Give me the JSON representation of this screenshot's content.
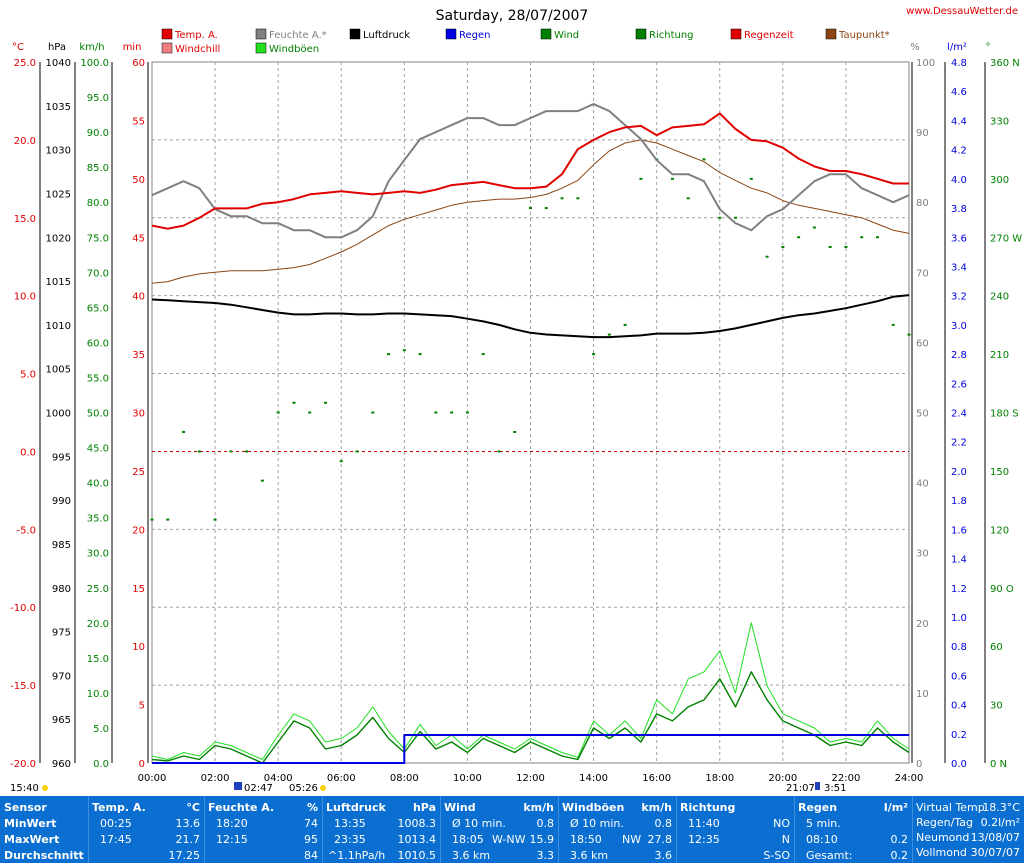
{
  "title": "Saturday, 28/07/2007",
  "site": "www.DessauWetter.de",
  "legend": [
    {
      "label": "Temp. A.",
      "color": "#e00000"
    },
    {
      "label": "Windchill",
      "color": "#f08080"
    },
    {
      "label": "Feuchte A.*",
      "color": "#808080"
    },
    {
      "label": "Windböen",
      "color": "#20e020"
    },
    {
      "label": "Luftdruck",
      "color": "#000000"
    },
    {
      "label": "Regen",
      "color": "#0000e0"
    },
    {
      "label": "Wind",
      "color": "#008000"
    },
    {
      "label": "Richtung",
      "color": "#008000"
    },
    {
      "label": "Regenzeit",
      "color": "#e00000"
    },
    {
      "label": "Taupunkt*",
      "color": "#8b4513"
    }
  ],
  "axes": {
    "left_units": [
      "°C",
      "hPa",
      "km/h",
      "min"
    ],
    "right_units": [
      "%",
      "l/m²",
      "°"
    ],
    "temp_ticks": [
      "25.0",
      "20.0",
      "15.0",
      "10.0",
      "5.0",
      "0.0",
      "-5.0",
      "-10.0",
      "-15.0",
      "-20.0"
    ],
    "hpa_ticks": [
      "1040",
      "1035",
      "1030",
      "1025",
      "1020",
      "1015",
      "1010",
      "1005",
      "1000",
      "995",
      "990",
      "985",
      "980",
      "975",
      "970",
      "965",
      "960"
    ],
    "kmh_ticks": [
      "100.0",
      "95.0",
      "90.0",
      "85.0",
      "80.0",
      "75.0",
      "70.0",
      "65.0",
      "60.0",
      "55.0",
      "50.0",
      "45.0",
      "40.0",
      "35.0",
      "30.0",
      "25.0",
      "20.0",
      "15.0",
      "10.0",
      "5.0",
      "0.0"
    ],
    "min_ticks": [
      "60",
      "55",
      "50",
      "45",
      "40",
      "35",
      "30",
      "25",
      "20",
      "15",
      "10",
      "5",
      "0"
    ],
    "pct_ticks": [
      "100",
      "90",
      "80",
      "70",
      "60",
      "50",
      "40",
      "30",
      "20",
      "10",
      "0"
    ],
    "rain_ticks": [
      "4.8",
      "4.6",
      "4.4",
      "4.2",
      "4.0",
      "3.8",
      "3.6",
      "3.4",
      "3.2",
      "3.0",
      "2.8",
      "2.6",
      "2.4",
      "2.2",
      "2.0",
      "1.8",
      "1.6",
      "1.4",
      "1.2",
      "1.0",
      "0.8",
      "0.6",
      "0.4",
      "0.2",
      "0.0"
    ],
    "dir_ticks": [
      "360 N",
      "330",
      "300",
      "270 W",
      "240",
      "210",
      "180 S",
      "150",
      "120",
      "90 O",
      "60",
      "30",
      "0   N"
    ],
    "time_ticks": [
      "00:00",
      "02:00",
      "04:00",
      "06:00",
      "08:00",
      "10:00",
      "12:00",
      "14:00",
      "16:00",
      "18:00",
      "20:00",
      "22:00",
      "24:00"
    ]
  },
  "sun": {
    "sunrise": "05:26",
    "sunset": "21:07",
    "day_length": "15:40",
    "moonrise": "02:47",
    "moonset": "3:51"
  },
  "chart_data": {
    "type": "line",
    "title": "Saturday, 28/07/2007",
    "x_hours": [
      0,
      0.5,
      1,
      1.5,
      2,
      2.5,
      3,
      3.5,
      4,
      4.5,
      5,
      5.5,
      6,
      6.5,
      7,
      7.5,
      8,
      8.5,
      9,
      9.5,
      10,
      10.5,
      11,
      11.5,
      12,
      12.5,
      13,
      13.5,
      14,
      14.5,
      15,
      15.5,
      16,
      16.5,
      17,
      17.5,
      18,
      18.5,
      19,
      19.5,
      20,
      20.5,
      21,
      21.5,
      22,
      22.5,
      23,
      23.5,
      24
    ],
    "series": [
      {
        "name": "Temp. A.",
        "unit": "°C",
        "values": [
          14.5,
          14.3,
          14.5,
          15.0,
          15.6,
          15.6,
          15.6,
          15.9,
          16.0,
          16.2,
          16.5,
          16.6,
          16.7,
          16.6,
          16.5,
          16.6,
          16.7,
          16.6,
          16.8,
          17.1,
          17.2,
          17.3,
          17.1,
          16.9,
          16.9,
          17.0,
          17.8,
          19.4,
          20.0,
          20.5,
          20.8,
          20.9,
          20.3,
          20.8,
          20.9,
          21.0,
          21.7,
          20.7,
          20.0,
          19.9,
          19.5,
          18.8,
          18.3,
          18.0,
          18.0,
          17.8,
          17.5,
          17.2,
          17.2
        ]
      },
      {
        "name": "Taupunkt*",
        "unit": "°C",
        "values": [
          10.8,
          10.9,
          11.2,
          11.4,
          11.5,
          11.6,
          11.6,
          11.6,
          11.7,
          11.8,
          12.0,
          12.4,
          12.8,
          13.3,
          13.9,
          14.5,
          14.9,
          15.2,
          15.5,
          15.8,
          16.0,
          16.1,
          16.2,
          16.2,
          16.3,
          16.5,
          16.9,
          17.4,
          18.4,
          19.3,
          19.8,
          20.0,
          19.8,
          19.4,
          19.0,
          18.6,
          17.9,
          17.4,
          16.9,
          16.6,
          16.1,
          15.8,
          15.6,
          15.4,
          15.2,
          15.0,
          14.6,
          14.2,
          14.0
        ]
      },
      {
        "name": "Feuchte A.*",
        "unit": "%",
        "values": [
          81,
          82,
          83,
          82,
          79,
          78,
          78,
          77,
          77,
          76,
          76,
          75,
          75,
          76,
          78,
          83,
          86,
          89,
          90,
          91,
          92,
          92,
          91,
          91,
          92,
          93,
          93,
          93,
          94,
          93,
          91,
          89,
          86,
          84,
          84,
          83,
          79,
          77,
          76,
          78,
          79,
          81,
          83,
          84,
          84,
          82,
          81,
          80,
          81
        ]
      },
      {
        "name": "Luftdruck",
        "unit": "hPa",
        "values": [
          1012.9,
          1012.8,
          1012.7,
          1012.6,
          1012.5,
          1012.3,
          1012.0,
          1011.7,
          1011.4,
          1011.2,
          1011.2,
          1011.3,
          1011.3,
          1011.2,
          1011.2,
          1011.3,
          1011.3,
          1011.2,
          1011.1,
          1011.0,
          1010.7,
          1010.4,
          1010.0,
          1009.5,
          1009.1,
          1008.9,
          1008.8,
          1008.7,
          1008.6,
          1008.6,
          1008.7,
          1008.8,
          1009.0,
          1009.0,
          1009.0,
          1009.1,
          1009.3,
          1009.6,
          1010.0,
          1010.4,
          1010.8,
          1011.1,
          1011.3,
          1011.6,
          1011.9,
          1012.3,
          1012.7,
          1013.2,
          1013.4
        ]
      },
      {
        "name": "Wind",
        "unit": "km/h",
        "values": [
          0.5,
          0.3,
          1.0,
          0.5,
          2.5,
          2.0,
          1.0,
          0.0,
          3.0,
          6.0,
          5.0,
          2.0,
          2.5,
          4.0,
          6.5,
          3.5,
          1.5,
          4.5,
          2.0,
          3.0,
          1.5,
          3.5,
          2.5,
          1.5,
          3.0,
          2.0,
          1.0,
          0.5,
          5.0,
          3.5,
          5.0,
          3.0,
          7.0,
          6.0,
          8.0,
          9.0,
          12.0,
          8.0,
          13.0,
          9.0,
          6.0,
          5.0,
          4.0,
          2.5,
          3.0,
          2.5,
          5.0,
          3.0,
          1.5
        ]
      },
      {
        "name": "Windböen",
        "unit": "km/h",
        "values": [
          1.0,
          0.5,
          1.5,
          1.0,
          3.0,
          2.5,
          1.5,
          0.5,
          4.0,
          7.0,
          6.0,
          3.0,
          3.5,
          5.0,
          8.0,
          4.5,
          2.0,
          5.5,
          2.5,
          4.0,
          2.0,
          4.0,
          3.0,
          2.0,
          3.5,
          2.5,
          1.5,
          0.8,
          6.0,
          4.0,
          6.0,
          3.5,
          9.0,
          7.0,
          12.0,
          13.0,
          16.0,
          10.0,
          20.0,
          11.0,
          7.0,
          6.0,
          5.0,
          3.0,
          3.5,
          3.0,
          6.0,
          3.5,
          2.0
        ]
      },
      {
        "name": "Regen",
        "unit": "l/m²",
        "values": [
          0,
          0,
          0,
          0,
          0,
          0,
          0,
          0,
          0,
          0,
          0,
          0,
          0,
          0,
          0,
          0,
          0.2,
          0.2,
          0.2,
          0.2,
          0.2,
          0.2,
          0.2,
          0.2,
          0.2,
          0.2,
          0.2,
          0.2,
          0.2,
          0.2,
          0.2,
          0.2,
          0.2,
          0.2,
          0.2,
          0.2,
          0.2,
          0.2,
          0.2,
          0.2,
          0.2,
          0.2,
          0.2,
          0.2,
          0.2,
          0.2,
          0.2,
          0.2,
          0.2
        ]
      },
      {
        "name": "Richtung",
        "unit": "°",
        "values": [
          125,
          125,
          170,
          160,
          125,
          160,
          160,
          145,
          180,
          185,
          180,
          185,
          155,
          160,
          180,
          210,
          212,
          210,
          180,
          180,
          180,
          210,
          160,
          170,
          285,
          285,
          290,
          290,
          210,
          220,
          225,
          300,
          310,
          300,
          290,
          310,
          280,
          280,
          300,
          260,
          265,
          270,
          275,
          265,
          265,
          270,
          270,
          225,
          220
        ]
      }
    ],
    "ylim_temp": [
      -20,
      25
    ],
    "ylim_pct": [
      0,
      100
    ]
  },
  "table": {
    "headers": [
      {
        "label": "Sensor",
        "unit": ""
      },
      {
        "label": "Temp. A.",
        "unit": "°C"
      },
      {
        "label": "Feuchte A.",
        "unit": "%"
      },
      {
        "label": "Luftdruck",
        "unit": "hPa"
      },
      {
        "label": "Wind",
        "unit": "km/h"
      },
      {
        "label": "Windböen",
        "unit": "km/h"
      },
      {
        "label": "Richtung",
        "unit": ""
      },
      {
        "label": "Regen",
        "unit": "l/m²"
      }
    ],
    "row_labels": [
      "MinWert",
      "MaxWert",
      "Durchschnitt"
    ],
    "temp": [
      [
        "00:25",
        "13.6"
      ],
      [
        "17:45",
        "21.7"
      ],
      [
        "",
        "17.25"
      ]
    ],
    "feuchte": [
      [
        "18:20",
        "74"
      ],
      [
        "12:15",
        "95"
      ],
      [
        "",
        "84"
      ]
    ],
    "luft": [
      [
        "13:35",
        "1008.3"
      ],
      [
        "23:35",
        "1013.4"
      ],
      [
        "^1.1hPa/h",
        "1010.5"
      ]
    ],
    "wind": [
      [
        "Ø 10 min.",
        "",
        "0.8"
      ],
      [
        "18:05",
        "W-NW",
        "15.9"
      ],
      [
        "3.6 km",
        "",
        "3.3"
      ]
    ],
    "boeen": [
      [
        "Ø 10 min.",
        "",
        "0.8"
      ],
      [
        "18:50",
        "NW",
        "27.8"
      ],
      [
        "3.6 km",
        "",
        "3.6"
      ]
    ],
    "richtung": [
      [
        "11:40",
        "NO"
      ],
      [
        "12:35",
        "N"
      ],
      [
        "",
        "S-SO"
      ]
    ],
    "regen": [
      [
        "5 min.",
        ""
      ],
      [
        "08:10",
        "0.2"
      ],
      [
        "Gesamt:",
        "0.2"
      ]
    ],
    "extra": [
      [
        "Virtual Temp",
        "18.3°C"
      ],
      [
        "Regen/Tag",
        "0.2l/m²"
      ],
      [
        "Neumond",
        "13/08/07"
      ],
      [
        "Vollmond",
        "30/07/07"
      ]
    ]
  }
}
